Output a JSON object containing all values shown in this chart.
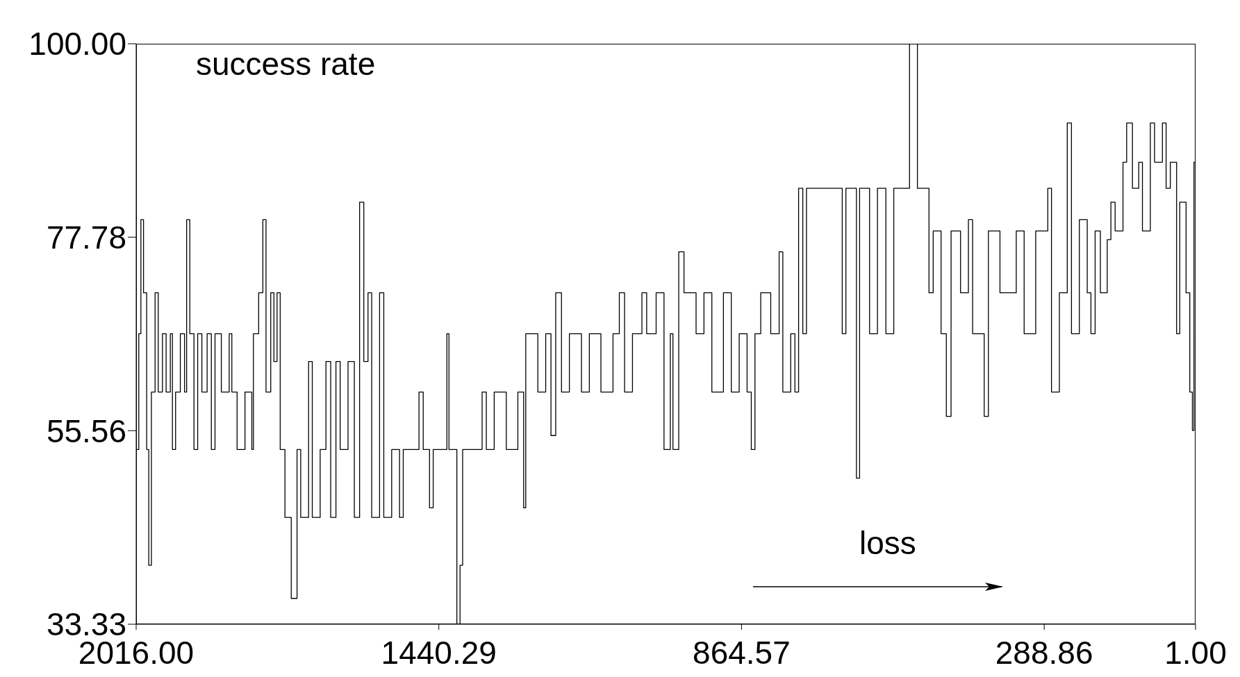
{
  "chart_data": {
    "type": "step",
    "annotations": [
      "success rate",
      "loss"
    ],
    "x": [
      2016,
      2011,
      2007,
      2002,
      1996,
      1992,
      1987,
      1980,
      1974,
      1966,
      1959,
      1951,
      1947,
      1941,
      1932,
      1924,
      1920,
      1914,
      1906,
      1899,
      1891,
      1881,
      1873,
      1866,
      1854,
      1839,
      1834,
      1824,
      1809,
      1796,
      1793,
      1783,
      1775,
      1769,
      1760,
      1754,
      1748,
      1742,
      1733,
      1721,
      1710,
      1703,
      1688,
      1681,
      1666,
      1655,
      1646,
      1636,
      1628,
      1613,
      1601,
      1591,
      1583,
      1575,
      1568,
      1553,
      1545,
      1530,
      1515,
      1508,
      1478,
      1470,
      1458,
      1451,
      1425,
      1421,
      1406,
      1400,
      1395,
      1358,
      1350,
      1335,
      1312,
      1290,
      1279,
      1275,
      1252,
      1237,
      1227,
      1218,
      1207,
      1192,
      1169,
      1154,
      1132,
      1109,
      1097,
      1087,
      1072,
      1054,
      1045,
      1027,
      1012,
      1000,
      995,
      984,
      974,
      951,
      936,
      921,
      899,
      884,
      869,
      854,
      846,
      839,
      828,
      809,
      793,
      786,
      771,
      763,
      756,
      748,
      741,
      681,
      673,
      666,
      646,
      640,
      621,
      606,
      590,
      575,
      545,
      530,
      508,
      500,
      485,
      475,
      466,
      448,
      433,
      425,
      403,
      395,
      373,
      342,
      327,
      305,
      282,
      275,
      260,
      245,
      237,
      222,
      207,
      200,
      192,
      182,
      169,
      162,
      154,
      139,
      132,
      121,
      109,
      102,
      87,
      79,
      64,
      57,
      49,
      37,
      31,
      19,
      12,
      7,
      4,
      1
    ],
    "series": [
      {
        "color": "#000000",
        "values": [
          53.4,
          66.7,
          79.8,
          71.4,
          53.4,
          40.1,
          60,
          71.4,
          60,
          66.7,
          60,
          66.7,
          53.4,
          60,
          66.7,
          60,
          79.8,
          66.7,
          53.4,
          66.7,
          60,
          66.7,
          53.4,
          66.7,
          60,
          66.7,
          60,
          53.4,
          60,
          53.4,
          66.7,
          71.4,
          79.8,
          60,
          71.4,
          63.5,
          71.4,
          53.4,
          45.6,
          36.3,
          53.4,
          45.6,
          63.5,
          45.6,
          53.4,
          63.5,
          45.6,
          63.5,
          53.4,
          63.5,
          45.6,
          81.8,
          63.5,
          71.4,
          45.6,
          71.4,
          45.6,
          53.4,
          45.6,
          53.4,
          60,
          53.4,
          46.7,
          53.4,
          66.7,
          53.4,
          33.33,
          40.1,
          53.4,
          60,
          53.4,
          60,
          53.4,
          60,
          46.7,
          66.7,
          60,
          66.7,
          55,
          71.4,
          60,
          66.7,
          60,
          66.7,
          60,
          66.7,
          71.4,
          60,
          66.7,
          71.4,
          66.7,
          71.4,
          53.4,
          66.7,
          53.4,
          76.1,
          71.4,
          66.7,
          71.4,
          60,
          71.4,
          60,
          66.7,
          60,
          53.4,
          66.7,
          71.4,
          66.7,
          76.1,
          60,
          66.7,
          60,
          83.4,
          66.7,
          83.4,
          83.4,
          66.7,
          83.4,
          50.1,
          83.4,
          66.7,
          83.4,
          66.7,
          83.4,
          100,
          83.4,
          71.4,
          78.5,
          66.7,
          57.2,
          78.5,
          71.4,
          79.8,
          66.7,
          57.2,
          78.5,
          71.4,
          78.5,
          66.7,
          78.5,
          83.4,
          60,
          71.4,
          90.9,
          66.7,
          79.8,
          71.4,
          66.7,
          78.5,
          71.4,
          77.5,
          81.8,
          78.5,
          86.4,
          90.9,
          83.4,
          86.4,
          78.5,
          90.9,
          86.4,
          90.9,
          83.4,
          86.4,
          66.7,
          81.8,
          71.4,
          60,
          55.6,
          86.4,
          66.7
        ]
      }
    ],
    "xlim": [
      2016,
      1
    ],
    "xticks": [
      {
        "value": 2016,
        "label": "2016.00"
      },
      {
        "value": 1440.29,
        "label": "1440.29"
      },
      {
        "value": 864.57,
        "label": "864.57"
      },
      {
        "value": 288.86,
        "label": "288.86"
      },
      {
        "value": 1,
        "label": "1.00"
      }
    ],
    "ylim": [
      33.33,
      100
    ],
    "yticks": [
      33.33,
      55.56,
      77.78,
      {
        "value": 100,
        "label": "100.00"
      }
    ]
  }
}
